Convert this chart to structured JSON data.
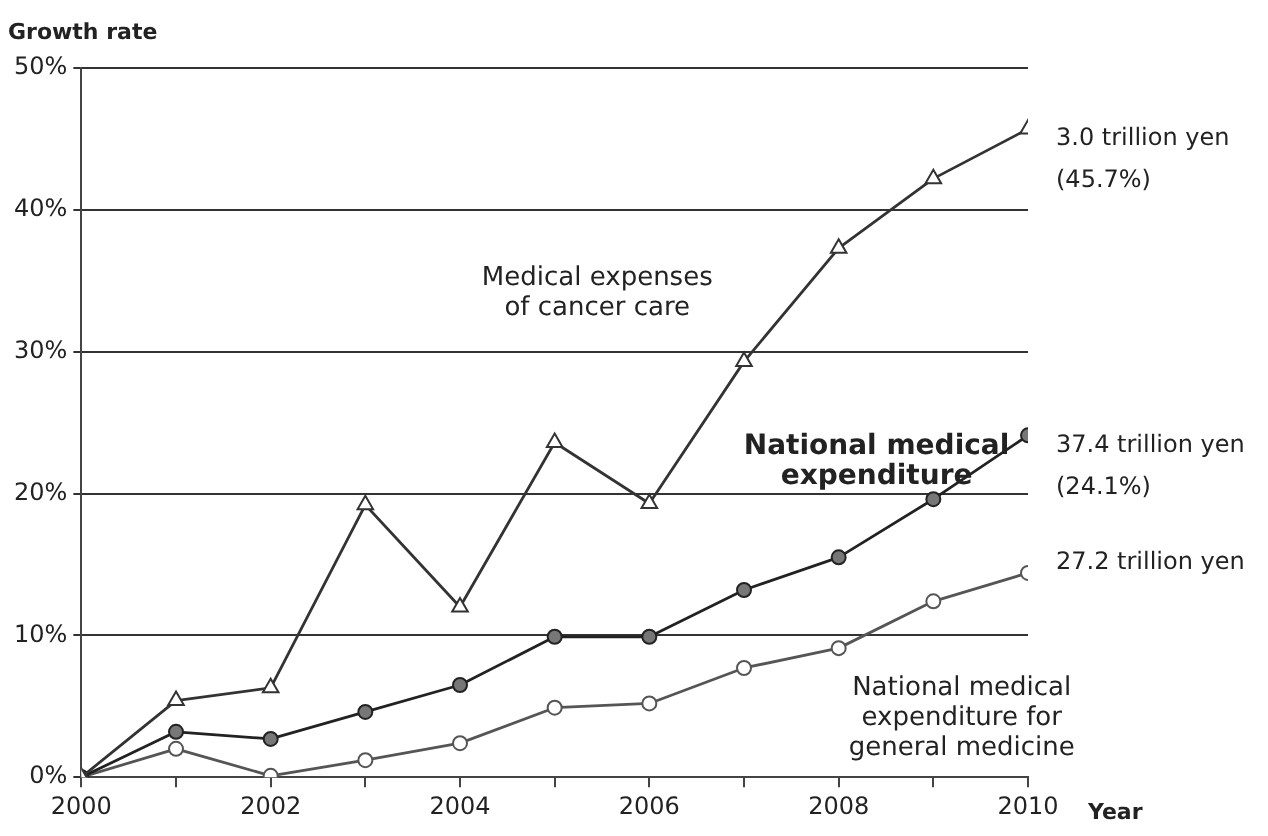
{
  "chart_data": {
    "type": "line",
    "ylabel": "Growth rate",
    "xlabel": "Year",
    "x": [
      2000,
      2001,
      2002,
      2003,
      2004,
      2005,
      2006,
      2007,
      2008,
      2009,
      2010
    ],
    "series": [
      {
        "name": "Medical expenses of cancer care",
        "color": "#333333",
        "marker": "triangle",
        "values": [
          0,
          5.4,
          6.3,
          19.2,
          12.0,
          23.6,
          19.3,
          29.3,
          37.3,
          42.2,
          45.7
        ]
      },
      {
        "name": "National medical expenditure",
        "color": "#222222",
        "marker": "circle",
        "values": [
          0,
          3.2,
          2.7,
          4.6,
          6.5,
          9.9,
          9.9,
          13.2,
          15.5,
          19.6,
          24.1
        ]
      },
      {
        "name": "National medical expenditure for general medicine",
        "color": "#555555",
        "marker": "circle",
        "values": [
          0,
          2.0,
          0.1,
          1.2,
          2.4,
          4.9,
          5.2,
          7.7,
          9.1,
          12.4,
          14.4
        ]
      }
    ],
    "xlim": [
      2000,
      2010
    ],
    "xticks": [
      2000,
      {
        "value": 2001,
        "label": null
      },
      2002,
      {
        "value": 2003,
        "label": null
      },
      2004,
      {
        "value": 2005,
        "label": null
      },
      2006,
      {
        "value": 2007,
        "label": null
      },
      2008,
      {
        "value": 2009,
        "label": null
      },
      2010
    ],
    "ylim": [
      0,
      50
    ],
    "yticks": [
      {
        "value": 0,
        "label": "0%"
      },
      {
        "value": 10,
        "label": "10%"
      },
      {
        "value": 20,
        "label": "20%"
      },
      {
        "value": 30,
        "label": "30%"
      },
      {
        "value": 40,
        "label": "40%"
      },
      {
        "value": 50,
        "label": "50%"
      }
    ],
    "grid": "y",
    "legend": false,
    "annotations": [
      "3.0 trillion yen\n(45.7%)",
      "37.4 trillion yen\n(24.1%)",
      "27.2 trillion yen"
    ]
  }
}
